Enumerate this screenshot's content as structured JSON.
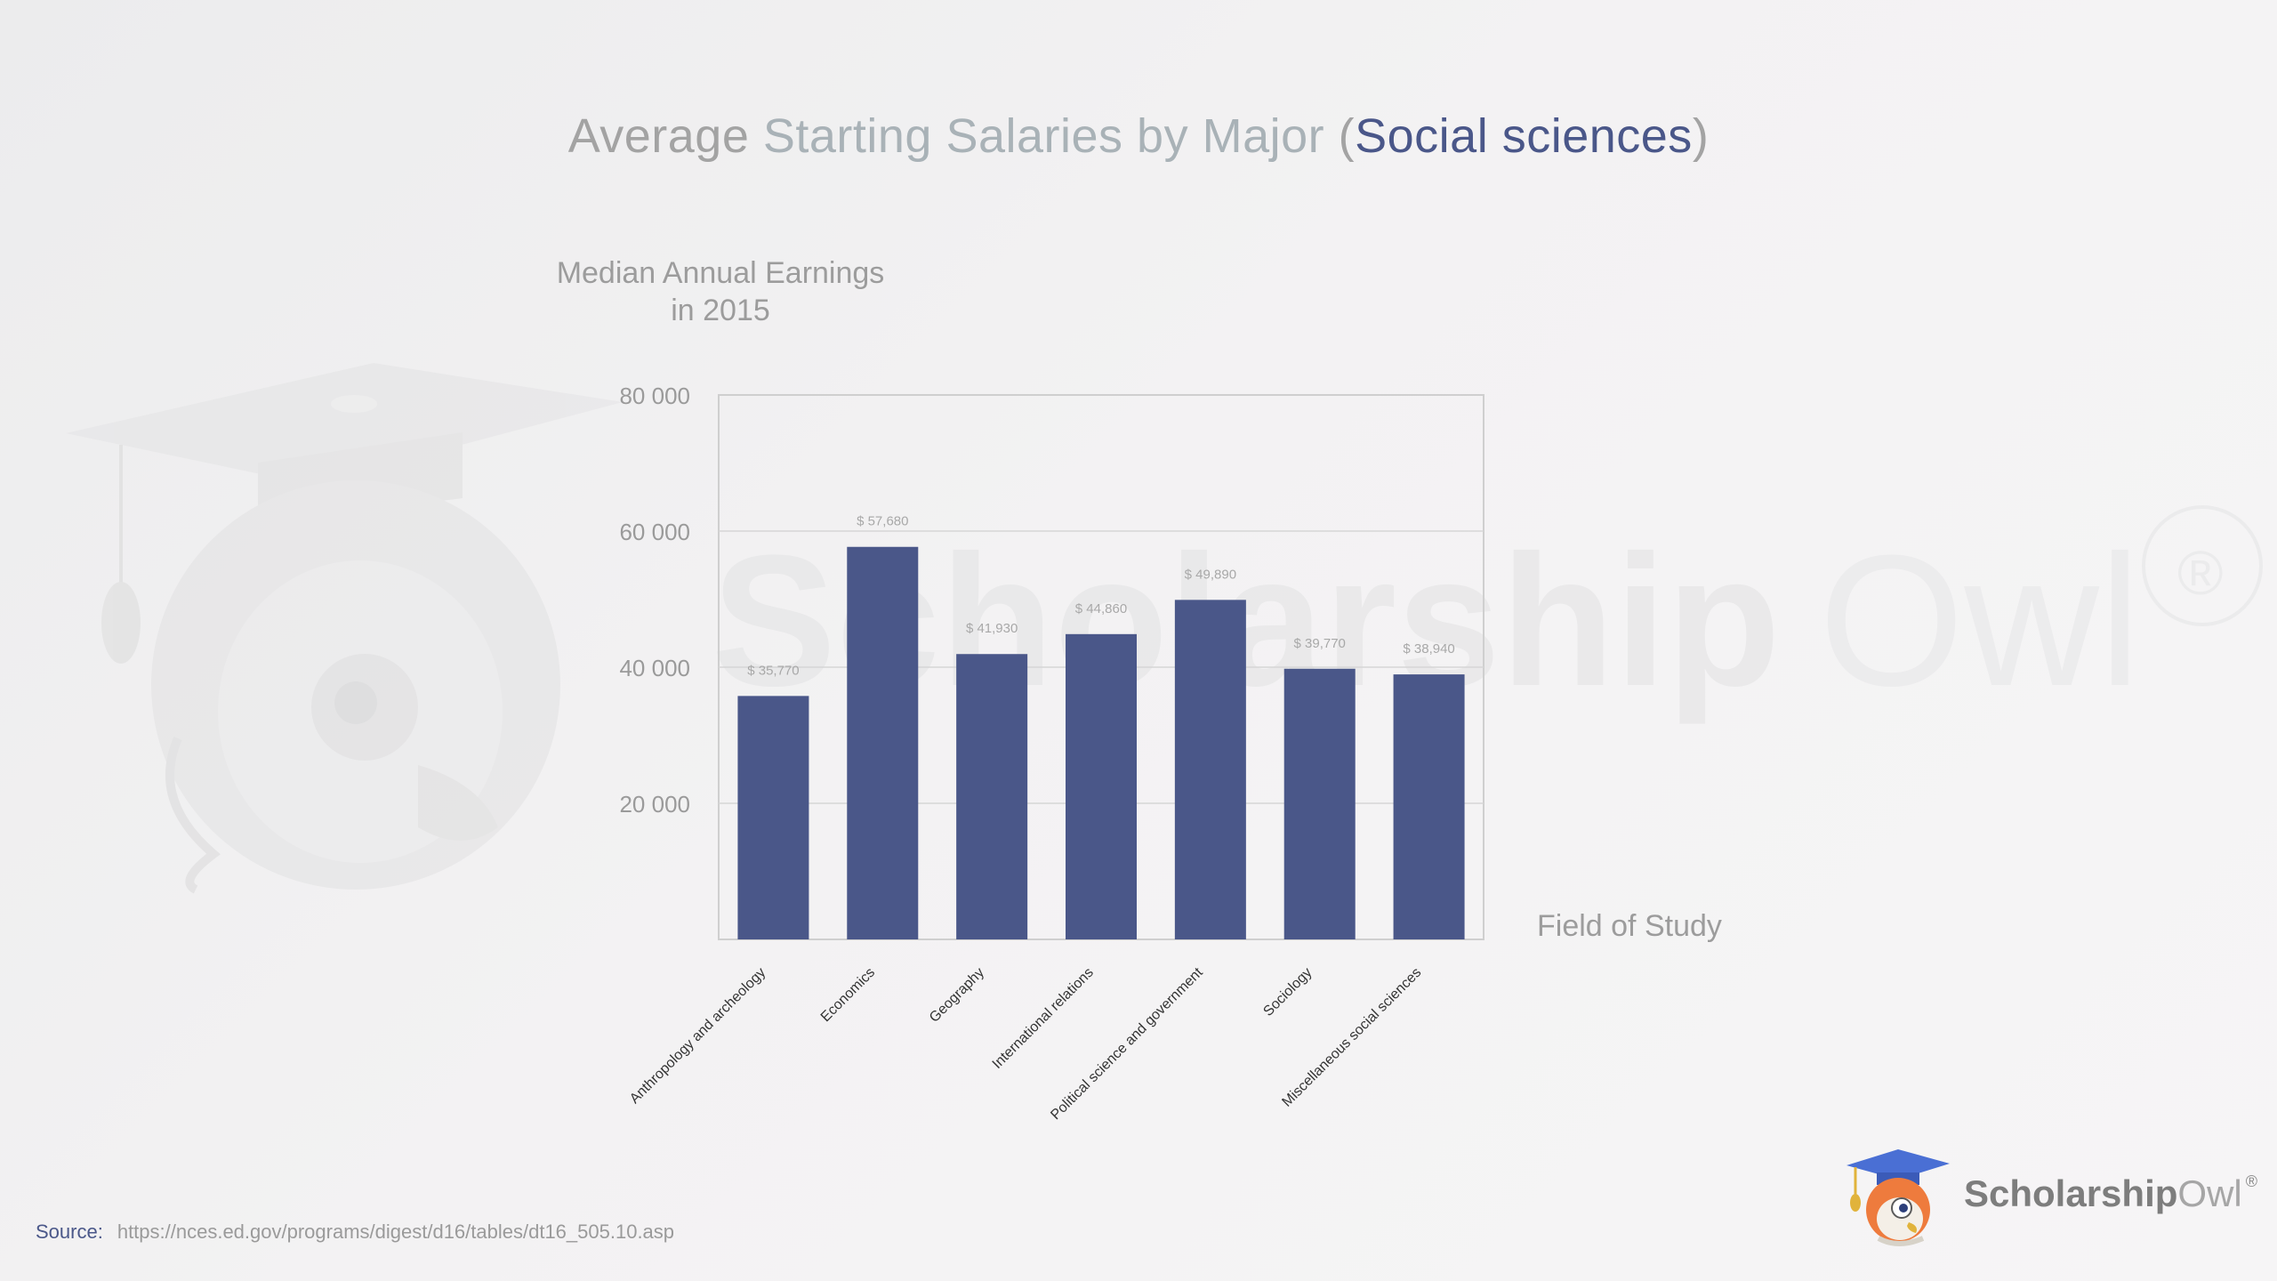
{
  "title": {
    "part1": "Average ",
    "part2": "Starting Salaries by Major",
    "part3": " (",
    "part4": "Social sciences",
    "part5": ")"
  },
  "watermark": {
    "brand_bold": "Scholarship",
    "brand_thin": "Owl",
    "registered": "®"
  },
  "logo": {
    "bold": "Scholarship",
    "thin": "Owl",
    "registered": "®"
  },
  "source": {
    "label": "Source:",
    "url": "https://nces.ed.gov/programs/digest/d16/tables/dt16_505.10.asp"
  },
  "colors": {
    "bar": "#4a5789",
    "accent": "#4a5789",
    "text_gray": "#9c9c9c",
    "grid": "#d6d6d6"
  },
  "chart_data": {
    "type": "bar",
    "ylabel": "Median Annual Earnings in 2015",
    "ylabel_lines": [
      "Median Annual Earnings",
      "in 2015"
    ],
    "xlabel": "Field of Study",
    "ylim": [
      0,
      80000
    ],
    "yticks": [
      20000,
      40000,
      60000,
      80000
    ],
    "ytick_labels": [
      "20 000",
      "40 000",
      "60 000",
      "80 000"
    ],
    "grid": "horizontal",
    "categories": [
      "Anthropology and archeology",
      "Economics",
      "Geography",
      "International relations",
      "Political science and government",
      "Sociology",
      "Miscellaneous social sciences"
    ],
    "values": [
      35770,
      57680,
      41930,
      44860,
      49890,
      39770,
      38940
    ],
    "value_labels": [
      "$ 35,770",
      "$ 57,680",
      "$ 41,930",
      "$ 44,860",
      "$ 49,890",
      "$ 39,770",
      "$ 38,940"
    ]
  }
}
